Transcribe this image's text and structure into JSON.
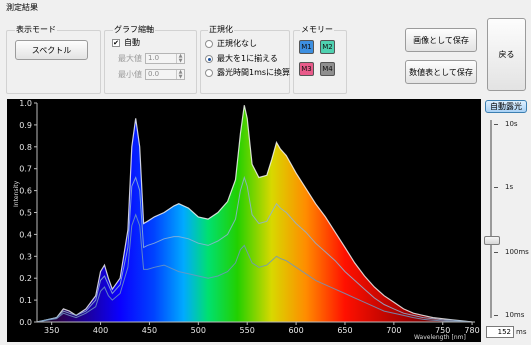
{
  "window": {
    "title": "測定結果"
  },
  "display_mode": {
    "legend": "表示モード",
    "button": "スペクトル"
  },
  "graph_scale": {
    "legend": "グラフ縮軸",
    "auto_label": "自動",
    "auto_checked": true,
    "max_label": "最大値",
    "max_value": "1.0",
    "min_label": "最小値",
    "min_value": "0.0"
  },
  "normalize": {
    "legend": "正規化",
    "options": [
      "正規化なし",
      "最大を1に揃える",
      "露光時間1msに換算"
    ],
    "selected": 1
  },
  "memory": {
    "legend": "メモリー",
    "slots": [
      {
        "label": "M1",
        "color": "#3d8fe0"
      },
      {
        "label": "M2",
        "color": "#4fd1b0"
      },
      {
        "label": "M3",
        "color": "#e85a8a"
      },
      {
        "label": "M4",
        "color": "#8f8f8f"
      }
    ]
  },
  "actions": {
    "save_image": "画像として保存",
    "save_values": "数値表として保存",
    "back": "戻る"
  },
  "exposure": {
    "auto_button": "自動露光",
    "ticks": [
      "10s",
      "1s",
      "100ms",
      "10ms"
    ],
    "value": "152",
    "unit": "ms"
  },
  "chart_data": {
    "type": "line",
    "title": "",
    "xlabel": "Wavelength [nm]",
    "ylabel": "Intensity",
    "xlim": [
      335,
      783
    ],
    "ylim": [
      0,
      1.0
    ],
    "x_ticks": [
      350,
      400,
      450,
      500,
      550,
      600,
      650,
      700,
      750,
      780
    ],
    "y_ticks": [
      0.0,
      0.1,
      0.2,
      0.3,
      0.4,
      0.5,
      0.6,
      0.7,
      0.8,
      0.9,
      1.0
    ],
    "grid": false,
    "series": [
      {
        "color": "#ffffff",
        "x": [
          335,
          345,
          355,
          362,
          368,
          375,
          385,
          395,
          400,
          404,
          408,
          412,
          420,
          428,
          432,
          436,
          440,
          444,
          448,
          455,
          465,
          475,
          480,
          490,
          500,
          510,
          520,
          530,
          538,
          543,
          547,
          550,
          555,
          562,
          570,
          575,
          580,
          584,
          590,
          600,
          610,
          620,
          630,
          640,
          650,
          660,
          670,
          680,
          690,
          700,
          710,
          720,
          730,
          740,
          750,
          760,
          770,
          780
        ],
        "y": [
          0.0,
          0.01,
          0.02,
          0.06,
          0.05,
          0.03,
          0.06,
          0.12,
          0.23,
          0.26,
          0.2,
          0.15,
          0.2,
          0.42,
          0.8,
          0.93,
          0.8,
          0.45,
          0.46,
          0.48,
          0.5,
          0.53,
          0.54,
          0.52,
          0.48,
          0.47,
          0.5,
          0.55,
          0.65,
          0.86,
          0.99,
          0.93,
          0.72,
          0.66,
          0.67,
          0.74,
          0.82,
          0.79,
          0.76,
          0.68,
          0.61,
          0.54,
          0.48,
          0.41,
          0.34,
          0.27,
          0.21,
          0.16,
          0.12,
          0.09,
          0.06,
          0.04,
          0.03,
          0.02,
          0.015,
          0.01,
          0.005,
          0.0
        ]
      },
      {
        "color": "#8fb3d6",
        "x": [
          335,
          345,
          355,
          362,
          368,
          375,
          385,
          395,
          400,
          404,
          408,
          412,
          420,
          428,
          432,
          436,
          440,
          444,
          448,
          455,
          465,
          475,
          480,
          490,
          500,
          510,
          520,
          530,
          538,
          543,
          547,
          550,
          555,
          562,
          570,
          575,
          580,
          584,
          590,
          600,
          610,
          620,
          630,
          640,
          650,
          660,
          670,
          680,
          690,
          700,
          710,
          720,
          730,
          740,
          750,
          760,
          770,
          780
        ],
        "y": [
          0.0,
          0.01,
          0.02,
          0.05,
          0.04,
          0.03,
          0.05,
          0.1,
          0.19,
          0.21,
          0.17,
          0.13,
          0.17,
          0.34,
          0.62,
          0.66,
          0.6,
          0.34,
          0.35,
          0.36,
          0.38,
          0.39,
          0.39,
          0.38,
          0.36,
          0.35,
          0.37,
          0.4,
          0.47,
          0.6,
          0.66,
          0.62,
          0.49,
          0.45,
          0.46,
          0.5,
          0.54,
          0.52,
          0.5,
          0.45,
          0.41,
          0.36,
          0.32,
          0.28,
          0.23,
          0.19,
          0.15,
          0.11,
          0.08,
          0.06,
          0.04,
          0.03,
          0.02,
          0.015,
          0.01,
          0.008,
          0.004,
          0.0
        ]
      },
      {
        "color": "#6f96c0",
        "x": [
          335,
          345,
          355,
          362,
          368,
          375,
          385,
          395,
          400,
          404,
          408,
          412,
          420,
          428,
          432,
          436,
          440,
          444,
          448,
          455,
          465,
          475,
          480,
          490,
          500,
          510,
          520,
          530,
          538,
          543,
          547,
          550,
          555,
          562,
          570,
          575,
          580,
          584,
          590,
          600,
          610,
          620,
          630,
          640,
          650,
          660,
          670,
          680,
          690,
          700,
          710,
          720,
          730,
          740,
          750,
          760,
          770,
          780
        ],
        "y": [
          0.0,
          0.008,
          0.015,
          0.04,
          0.03,
          0.02,
          0.04,
          0.07,
          0.14,
          0.16,
          0.12,
          0.1,
          0.13,
          0.25,
          0.44,
          0.49,
          0.44,
          0.24,
          0.24,
          0.25,
          0.26,
          0.24,
          0.23,
          0.22,
          0.21,
          0.2,
          0.21,
          0.23,
          0.27,
          0.33,
          0.35,
          0.32,
          0.27,
          0.25,
          0.26,
          0.28,
          0.3,
          0.29,
          0.28,
          0.25,
          0.22,
          0.19,
          0.17,
          0.15,
          0.13,
          0.11,
          0.09,
          0.07,
          0.05,
          0.04,
          0.03,
          0.02,
          0.012,
          0.008,
          0.005,
          0.003,
          0.002,
          0.0
        ]
      }
    ]
  }
}
